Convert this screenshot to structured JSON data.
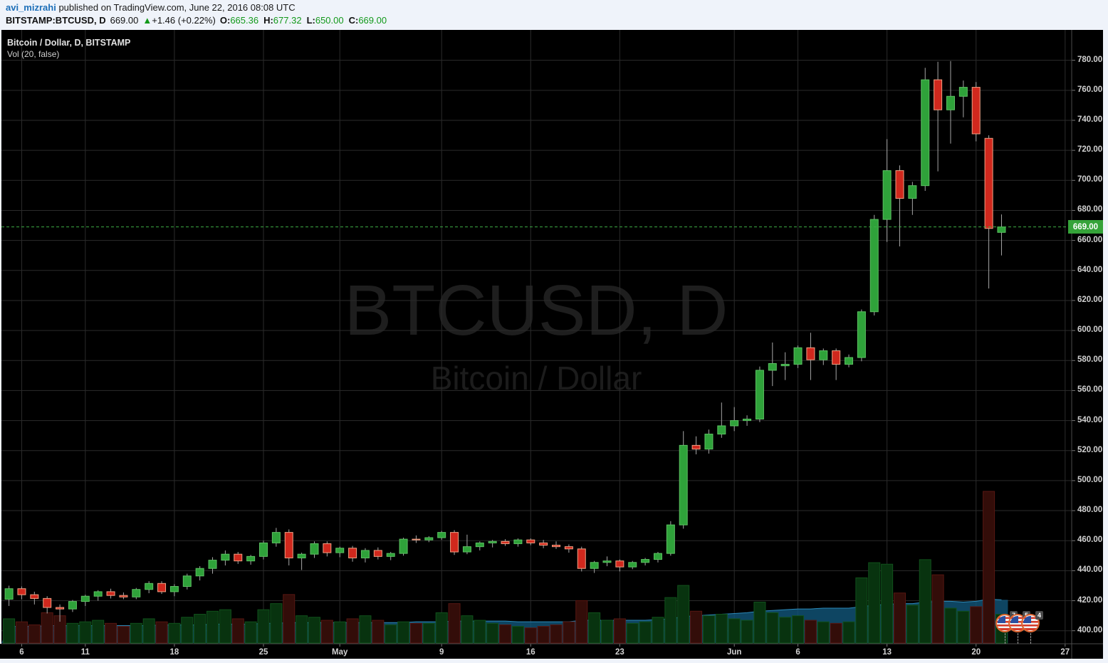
{
  "header": {
    "author": "avi_mizrahi",
    "published_text": " published on TradingView.com, June 22, 2016 08:08 UTC",
    "symbol": "BITSTAMP:BTCUSD, D",
    "last_price": "669.00",
    "change_arrow": "▲",
    "change_text": "+1.46 (+0.22%)",
    "ohlc": [
      {
        "label": "O:",
        "value": "665.36"
      },
      {
        "label": "H:",
        "value": "677.32"
      },
      {
        "label": "L:",
        "value": "650.00"
      },
      {
        "label": "C:",
        "value": "669.00"
      }
    ]
  },
  "legend": {
    "title": "Bitcoin / Dollar, D, BITSTAMP",
    "indicator": "Vol (20, false)"
  },
  "watermark": {
    "line1": "BTCUSD, D",
    "line2": "Bitcoin / Dollar"
  },
  "axes": {
    "y_ticks": [
      "780.00",
      "760.00",
      "740.00",
      "720.00",
      "700.00",
      "680.00",
      "660.00",
      "640.00",
      "620.00",
      "600.00",
      "580.00",
      "560.00",
      "540.00",
      "520.00",
      "500.00",
      "480.00",
      "460.00",
      "440.00",
      "420.00",
      "400.00"
    ],
    "x_ticks": [
      {
        "label": "6",
        "day_index": 1
      },
      {
        "label": "11",
        "day_index": 6
      },
      {
        "label": "18",
        "day_index": 13
      },
      {
        "label": "25",
        "day_index": 20
      },
      {
        "label": "May",
        "day_index": 26
      },
      {
        "label": "9",
        "day_index": 34
      },
      {
        "label": "16",
        "day_index": 41
      },
      {
        "label": "23",
        "day_index": 48
      },
      {
        "label": "Jun",
        "day_index": 57
      },
      {
        "label": "6",
        "day_index": 62
      },
      {
        "label": "13",
        "day_index": 69
      },
      {
        "label": "20",
        "day_index": 76
      },
      {
        "label": "27",
        "day_index": 83
      }
    ],
    "last_price_label": "669.00"
  },
  "event_flags": [
    {
      "badge": "7"
    },
    {
      "badge": "5"
    },
    {
      "badge": "4"
    }
  ],
  "colors": {
    "up_fill": "#2fa23a",
    "up_border": "#5dc063",
    "down_fill": "#d0281d",
    "down_border": "#f0a184",
    "wick": "#a6a6a6",
    "vol_up_fill": "#08330f",
    "vol_up_border": "#11511c",
    "vol_down_fill": "#330d09",
    "vol_down_border": "#571712",
    "vol_ma_fill": "#11567a",
    "vol_ma_line": "#2c89b8",
    "grid": "#2b2b2b",
    "price_line": "#3fae46",
    "price_label_bg": "#35a339",
    "header_green": "#12991a",
    "author_blue": "#1d6fb8",
    "chart_bg": "#000000",
    "page_bg": "#eff3fa",
    "axis_text": "#d2d2d2",
    "border": "#4a4a4a",
    "watermark": "#1e1e1e"
  },
  "chart_data": {
    "type": "candlestick+volume",
    "title": "Bitcoin / Dollar, D, BITSTAMP",
    "symbol": "BTCUSD",
    "exchange": "BITSTAMP",
    "interval": "D",
    "ylim": [
      391,
      800
    ],
    "current_price": 669.0,
    "x_dates": [
      "Apr 5",
      "Apr 6",
      "Apr 7",
      "Apr 8",
      "Apr 9",
      "Apr 10",
      "Apr 11",
      "Apr 12",
      "Apr 13",
      "Apr 14",
      "Apr 15",
      "Apr 16",
      "Apr 17",
      "Apr 18",
      "Apr 19",
      "Apr 20",
      "Apr 21",
      "Apr 22",
      "Apr 23",
      "Apr 24",
      "Apr 25",
      "Apr 26",
      "Apr 27",
      "Apr 28",
      "Apr 29",
      "Apr 30",
      "May 1",
      "May 2",
      "May 3",
      "May 4",
      "May 5",
      "May 6",
      "May 7",
      "May 8",
      "May 9",
      "May 10",
      "May 11",
      "May 12",
      "May 13",
      "May 14",
      "May 15",
      "May 16",
      "May 17",
      "May 18",
      "May 19",
      "May 20",
      "May 21",
      "May 22",
      "May 23",
      "May 24",
      "May 25",
      "May 26",
      "May 27",
      "May 28",
      "May 29",
      "May 30",
      "May 31",
      "Jun 1",
      "Jun 2",
      "Jun 3",
      "Jun 4",
      "Jun 5",
      "Jun 6",
      "Jun 7",
      "Jun 8",
      "Jun 9",
      "Jun 10",
      "Jun 11",
      "Jun 12",
      "Jun 13",
      "Jun 14",
      "Jun 15",
      "Jun 16",
      "Jun 17",
      "Jun 18",
      "Jun 19",
      "Jun 20",
      "Jun 21",
      "Jun 22"
    ],
    "candles_ohlc": [
      [
        421.0,
        430.0,
        416.5,
        428.0
      ],
      [
        428.0,
        429.5,
        421.0,
        424.0
      ],
      [
        424.0,
        426.0,
        417.5,
        421.5
      ],
      [
        421.5,
        423.0,
        411.5,
        415.5
      ],
      [
        415.5,
        417.5,
        406.0,
        414.5
      ],
      [
        414.5,
        420.5,
        412.5,
        419.5
      ],
      [
        419.5,
        424.0,
        416.5,
        423.0
      ],
      [
        423.0,
        427.0,
        420.0,
        426.0
      ],
      [
        426.0,
        428.0,
        421.5,
        423.5
      ],
      [
        423.5,
        425.5,
        421.0,
        422.5
      ],
      [
        422.5,
        428.5,
        421.0,
        427.5
      ],
      [
        427.5,
        433.0,
        425.0,
        431.5
      ],
      [
        431.5,
        433.0,
        424.5,
        426.0
      ],
      [
        426.0,
        431.0,
        423.0,
        429.5
      ],
      [
        429.5,
        438.0,
        427.5,
        436.5
      ],
      [
        436.5,
        443.0,
        433.5,
        441.5
      ],
      [
        441.5,
        449.0,
        438.0,
        447.0
      ],
      [
        447.0,
        453.5,
        443.5,
        451.0
      ],
      [
        451.0,
        452.5,
        444.5,
        446.5
      ],
      [
        446.5,
        450.5,
        444.0,
        449.5
      ],
      [
        449.5,
        460.0,
        447.5,
        458.5
      ],
      [
        458.5,
        468.5,
        456.0,
        465.5
      ],
      [
        465.5,
        467.5,
        443.5,
        448.5
      ],
      [
        448.5,
        452.0,
        440.5,
        451.0
      ],
      [
        451.0,
        459.5,
        448.5,
        458.0
      ],
      [
        458.0,
        459.5,
        449.5,
        452.0
      ],
      [
        452.0,
        456.0,
        449.0,
        455.0
      ],
      [
        455.0,
        456.5,
        446.0,
        448.5
      ],
      [
        448.5,
        455.0,
        445.5,
        453.5
      ],
      [
        453.5,
        455.5,
        447.5,
        449.5
      ],
      [
        449.5,
        452.5,
        447.0,
        451.5
      ],
      [
        451.5,
        462.0,
        450.0,
        461.0
      ],
      [
        461.0,
        463.5,
        458.5,
        460.5
      ],
      [
        460.5,
        463.0,
        459.0,
        462.0
      ],
      [
        462.0,
        466.5,
        460.5,
        465.5
      ],
      [
        465.5,
        467.0,
        450.5,
        452.5
      ],
      [
        452.5,
        464.0,
        451.0,
        456.0
      ],
      [
        456.0,
        459.5,
        453.5,
        458.5
      ],
      [
        458.5,
        460.5,
        455.5,
        459.5
      ],
      [
        459.5,
        461.0,
        456.5,
        458.0
      ],
      [
        458.0,
        461.5,
        456.0,
        460.5
      ],
      [
        460.5,
        461.5,
        457.0,
        458.5
      ],
      [
        458.5,
        460.5,
        455.0,
        457.0
      ],
      [
        457.0,
        459.5,
        454.5,
        456.0
      ],
      [
        456.0,
        457.5,
        452.0,
        454.5
      ],
      [
        454.5,
        456.0,
        439.5,
        441.5
      ],
      [
        441.5,
        446.5,
        438.5,
        445.5
      ],
      [
        445.5,
        449.5,
        443.0,
        446.5
      ],
      [
        446.5,
        447.5,
        439.5,
        442.5
      ],
      [
        442.5,
        446.5,
        441.0,
        445.5
      ],
      [
        445.5,
        448.5,
        443.5,
        447.5
      ],
      [
        447.5,
        452.5,
        445.5,
        451.5
      ],
      [
        451.5,
        473.0,
        450.0,
        470.5
      ],
      [
        470.5,
        533.0,
        468.0,
        523.5
      ],
      [
        523.5,
        529.5,
        517.5,
        521.0
      ],
      [
        521.0,
        534.0,
        518.0,
        531.0
      ],
      [
        531.0,
        552.0,
        528.5,
        536.5
      ],
      [
        536.5,
        549.0,
        533.0,
        540.0
      ],
      [
        540.0,
        543.5,
        536.5,
        541.0
      ],
      [
        541.0,
        576.0,
        539.0,
        573.5
      ],
      [
        573.5,
        592.0,
        563.0,
        578.0
      ],
      [
        576.5,
        585.5,
        567.0,
        577.5
      ],
      [
        577.5,
        590.0,
        575.0,
        588.5
      ],
      [
        588.5,
        598.5,
        567.0,
        580.5
      ],
      [
        580.5,
        588.0,
        577.0,
        586.5
      ],
      [
        586.5,
        588.0,
        567.0,
        577.5
      ],
      [
        577.5,
        584.0,
        575.5,
        582.0
      ],
      [
        582.0,
        614.0,
        579.5,
        612.5
      ],
      [
        612.5,
        677.0,
        610.0,
        674.0
      ],
      [
        674.0,
        727.5,
        659.0,
        706.5
      ],
      [
        706.5,
        710.0,
        656.0,
        688.0
      ],
      [
        688.0,
        699.0,
        677.0,
        696.5
      ],
      [
        696.5,
        775.0,
        693.0,
        767.0
      ],
      [
        767.0,
        779.0,
        706.0,
        747.0
      ],
      [
        747.0,
        779.5,
        724.5,
        756.0
      ],
      [
        756.0,
        766.5,
        742.0,
        762.0
      ],
      [
        762.0,
        765.5,
        726.0,
        731.0
      ],
      [
        728.0,
        730.0,
        628.0,
        668.0
      ],
      [
        665.36,
        677.32,
        650.0,
        669.0
      ]
    ],
    "volume_rel": [
      16,
      14,
      12,
      20,
      18,
      13,
      14,
      15,
      13,
      11,
      13,
      16,
      14,
      13,
      17,
      19,
      21,
      22,
      16,
      14,
      22,
      26,
      32,
      18,
      17,
      15,
      14,
      16,
      18,
      15,
      12,
      14,
      13,
      13,
      20,
      26,
      18,
      15,
      13,
      12,
      11,
      10,
      11,
      12,
      14,
      28,
      20,
      15,
      16,
      13,
      14,
      17,
      30,
      38,
      21,
      18,
      19,
      16,
      15,
      27,
      20,
      17,
      18,
      15,
      14,
      13,
      14,
      43,
      53,
      52,
      33,
      25,
      55,
      45,
      23,
      21,
      24,
      100,
      19
    ],
    "vol_ma_rel": [
      11,
      11,
      11,
      11.5,
      11.5,
      11.5,
      11.5,
      11.5,
      11.5,
      11.5,
      11.5,
      11.5,
      12,
      12,
      12,
      12,
      12.5,
      12.5,
      12.5,
      12.5,
      13,
      13,
      13.5,
      13.5,
      13.5,
      13.5,
      13.5,
      13.5,
      13.5,
      13.5,
      13.5,
      13.5,
      14,
      14,
      14,
      14.5,
      14.5,
      14.5,
      14.5,
      14.5,
      14,
      14,
      14,
      14,
      14,
      15,
      15,
      15,
      15,
      15,
      15,
      15.5,
      16,
      17.5,
      18,
      18.5,
      19,
      19.5,
      20,
      21,
      21.5,
      22,
      22.5,
      22.5,
      23,
      23,
      23,
      24,
      25,
      25.5,
      26,
      26,
      27,
      27.5,
      27.5,
      27,
      27.5,
      29,
      28.5
    ]
  }
}
